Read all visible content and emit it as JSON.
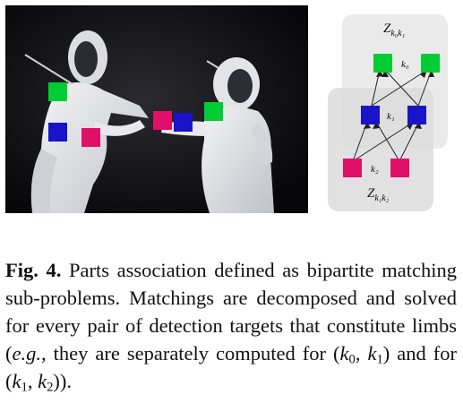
{
  "diagram": {
    "top_group_label_main": "Z",
    "top_group_label_sub": "k₀k₁",
    "bottom_group_label_main": "Z",
    "bottom_group_label_sub": "k₁k₂",
    "node_label_k0": "k₀",
    "node_label_k1": "k₁",
    "node_label_k2": "k₂",
    "colors": {
      "green": "#00cc33",
      "blue": "#1a14c8",
      "magenta": "#e0106a",
      "group_bg": "#e6e6e6"
    }
  },
  "photo": {
    "description_icon": "fencing-photo",
    "markers": [
      "green",
      "blue",
      "magenta",
      "magenta",
      "blue",
      "green"
    ]
  },
  "caption": {
    "fig_label": "Fig. 4.",
    "line1_text": " Parts association defined as bipartite matching sub-problems. Matchings are decomposed and solved for every pair of detection targets that constitute limbs (",
    "eg": "e.g.",
    "line2_text": ", they are separately computed for (",
    "k0": "k",
    "sub0": "0",
    "comma1": ", ",
    "k1a": "k",
    "sub1a": "1",
    "mid_text": ") and for (",
    "k1b": "k",
    "sub1b": "1",
    "comma2": ", ",
    "k2": "k",
    "sub2": "2",
    "end_text": "))."
  }
}
